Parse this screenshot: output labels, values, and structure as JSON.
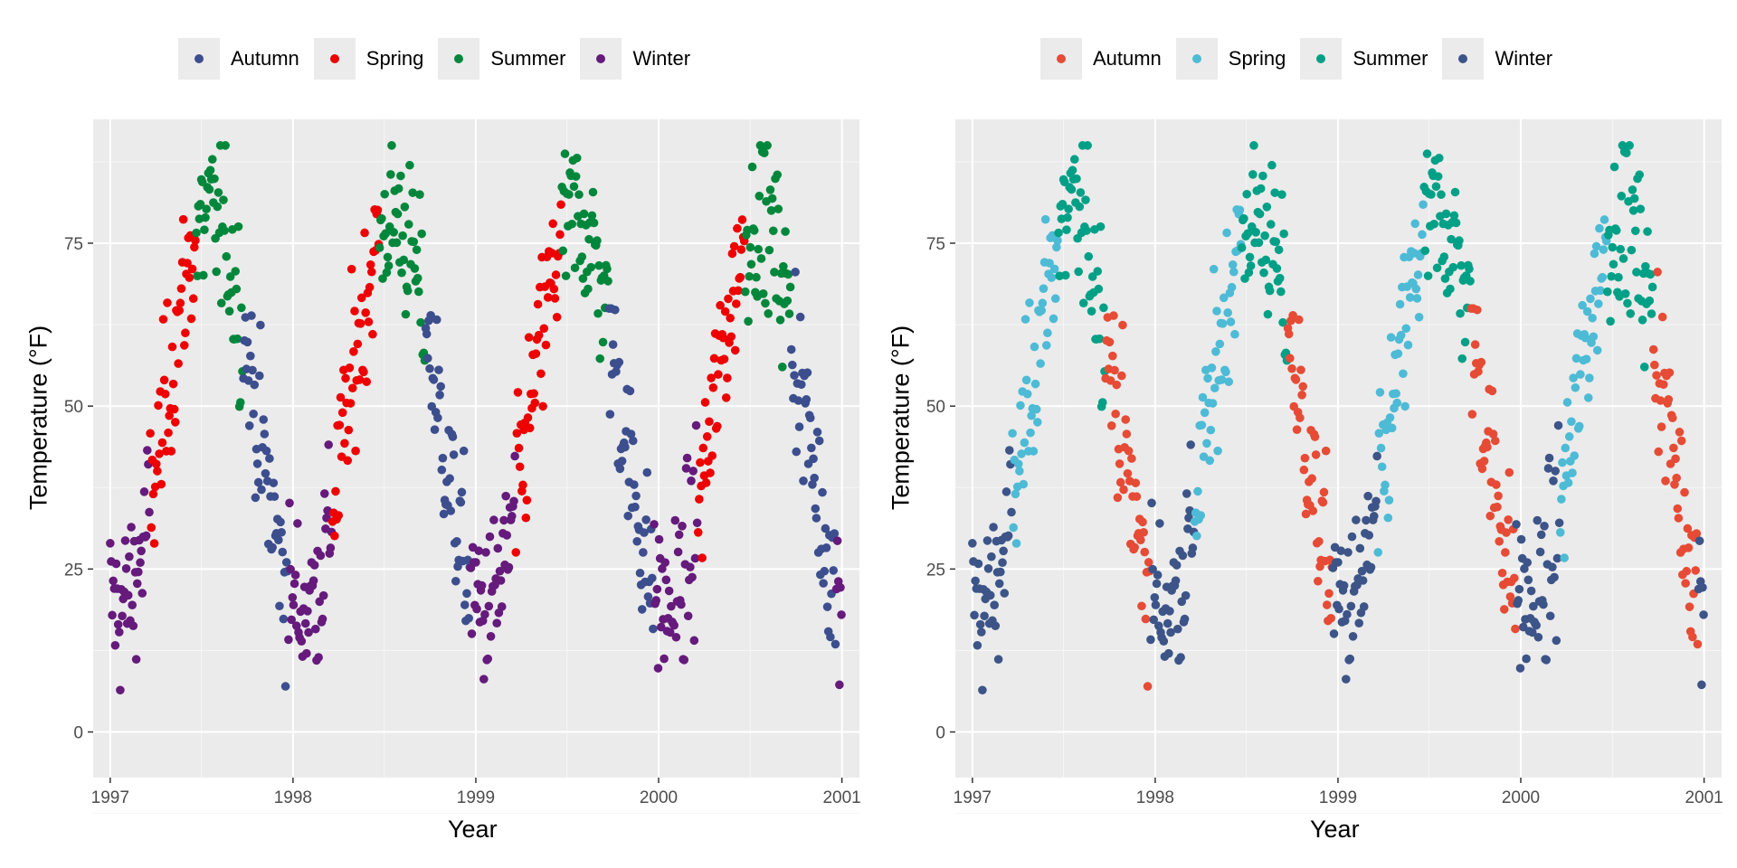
{
  "chart_data": [
    {
      "type": "scatter",
      "xlabel": "Year",
      "ylabel": "Temperature (°F)",
      "xlim": [
        "1996-11-28",
        "2001-02-05"
      ],
      "ylim": [
        -7,
        94
      ],
      "x_ticks": [
        "1997",
        "1998",
        "1999",
        "2000",
        "2001"
      ],
      "y_ticks": [
        0,
        25,
        50,
        75
      ],
      "legend": "top",
      "grid": true,
      "series": [
        {
          "name": "Autumn",
          "color": "#3C4E8E"
        },
        {
          "name": "Spring",
          "color": "#EE0000"
        },
        {
          "name": "Summer",
          "color": "#00873B"
        },
        {
          "name": "Winter",
          "color": "#651A7C"
        }
      ]
    },
    {
      "type": "scatter",
      "xlabel": "Year",
      "ylabel": "Temperature (°F)",
      "xlim": [
        "1996-11-28",
        "2001-02-05"
      ],
      "ylim": [
        -7,
        94
      ],
      "x_ticks": [
        "1997",
        "1998",
        "1999",
        "2000",
        "2001"
      ],
      "y_ticks": [
        0,
        25,
        50,
        75
      ],
      "legend": "top",
      "grid": true,
      "series": [
        {
          "name": "Autumn",
          "color": "#E64B35"
        },
        {
          "name": "Spring",
          "color": "#4DBBD5"
        },
        {
          "name": "Summer",
          "color": "#00A087"
        },
        {
          "name": "Winter",
          "color": "#3C5488"
        }
      ]
    }
  ]
}
